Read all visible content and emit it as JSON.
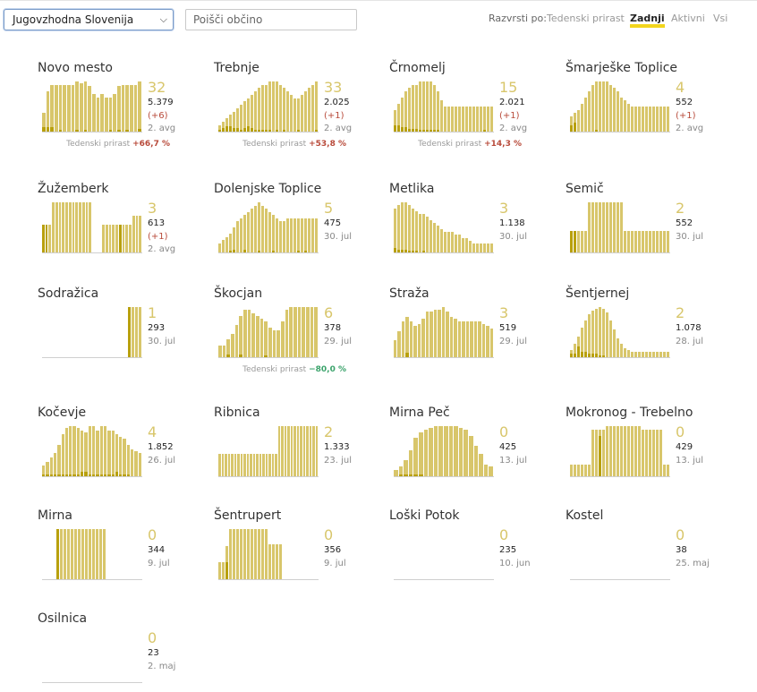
{
  "region_select": {
    "value": "Jugovzhodna Slovenija"
  },
  "search": {
    "placeholder": "Poišči občino"
  },
  "sort": {
    "label": "Razvrsti po:",
    "options": [
      "Tedenski prirast",
      "Zadnji",
      "Aktivni",
      "Vsi"
    ],
    "active": "Zadnji"
  },
  "weekly_label": "Tedenski prirast",
  "colors": {
    "bar": "#d8c66b",
    "bar_dark": "#b8a00d",
    "up": "#b84a3a",
    "down": "#3ba36b",
    "accent": "#f2d51c"
  },
  "municipalities": [
    {
      "name": "Novo mesto",
      "active": "32",
      "total": "5.379",
      "change": "(+6)",
      "date": "2. avg",
      "weekly": "+66,7 %",
      "trend": "up",
      "bars": [
        12,
        26,
        30,
        30,
        30,
        30,
        30,
        30,
        32,
        31,
        32,
        29,
        24,
        22,
        24,
        22,
        22,
        24,
        29,
        30,
        30,
        30,
        30,
        32
      ],
      "dark": [
        3,
        3,
        3,
        0,
        1,
        0,
        0,
        0,
        1,
        0,
        1,
        0,
        0,
        0,
        0,
        0,
        1,
        0,
        1,
        0,
        1,
        0,
        0,
        2
      ]
    },
    {
      "name": "Trebnje",
      "active": "33",
      "total": "2.025",
      "change": "(+1)",
      "date": "2. avg",
      "weekly": "+53,8 %",
      "trend": "up",
      "bars": [
        4,
        6,
        8,
        10,
        12,
        14,
        16,
        18,
        20,
        22,
        24,
        26,
        28,
        28,
        30,
        30,
        30,
        28,
        26,
        24,
        22,
        20,
        20,
        22,
        24,
        26,
        28,
        30
      ],
      "dark": [
        1,
        2,
        3,
        3,
        2,
        2,
        1,
        2,
        3,
        2,
        1,
        1,
        1,
        1,
        1,
        0,
        1,
        0,
        1,
        0,
        0,
        0,
        1,
        0,
        0,
        0,
        0,
        1
      ]
    },
    {
      "name": "Črnomelj",
      "active": "15",
      "total": "2.021",
      "change": "(+1)",
      "date": "2. avg",
      "weekly": "+14,3 %",
      "trend": "up",
      "bars": [
        14,
        18,
        22,
        26,
        28,
        30,
        30,
        32,
        32,
        32,
        32,
        30,
        26,
        20,
        16,
        16,
        16,
        16,
        16,
        16,
        16,
        16,
        16,
        16,
        16,
        16,
        16,
        16
      ],
      "dark": [
        4,
        4,
        3,
        3,
        2,
        2,
        2,
        1,
        1,
        1,
        1,
        1,
        1,
        0,
        0,
        0,
        0,
        0,
        0,
        0,
        0,
        0,
        0,
        0,
        0,
        1,
        0,
        0
      ]
    },
    {
      "name": "Šmarješke Toplice",
      "active": "4",
      "total": "552",
      "change": "(+1)",
      "date": "2. avg",
      "bars": [
        10,
        12,
        14,
        18,
        22,
        26,
        30,
        32,
        32,
        32,
        32,
        30,
        28,
        26,
        22,
        20,
        18,
        16,
        16,
        16,
        16,
        16,
        16,
        16,
        16,
        16,
        16,
        16
      ],
      "dark": [
        4,
        6,
        0,
        0,
        0,
        0,
        0,
        1,
        0,
        0,
        0,
        0,
        0,
        0,
        0,
        0,
        0,
        0,
        0,
        0,
        0,
        0,
        0,
        0,
        0,
        0,
        0,
        0
      ]
    },
    {
      "name": "Žužemberk",
      "active": "3",
      "total": "613",
      "change": "(+1)",
      "date": "2. avg",
      "bars": [
        12,
        12,
        12,
        22,
        22,
        22,
        22,
        22,
        22,
        22,
        22,
        22,
        22,
        22,
        22,
        0,
        0,
        0,
        12,
        12,
        12,
        12,
        12,
        12,
        12,
        12,
        12,
        16,
        16,
        16
      ],
      "dark": [
        12,
        12,
        0,
        0,
        0,
        0,
        0,
        0,
        0,
        0,
        0,
        0,
        0,
        0,
        0,
        0,
        0,
        0,
        0,
        0,
        0,
        0,
        0,
        12,
        0,
        0,
        0,
        0,
        0,
        0
      ]
    },
    {
      "name": "Dolenjske Toplice",
      "active": "5",
      "total": "475",
      "date": "30. jul",
      "bars": [
        6,
        8,
        10,
        12,
        16,
        20,
        22,
        24,
        26,
        28,
        30,
        32,
        30,
        28,
        26,
        24,
        22,
        20,
        20,
        22,
        22,
        22,
        22,
        22,
        22,
        22,
        22,
        22
      ],
      "dark": [
        0,
        0,
        0,
        1,
        2,
        0,
        0,
        2,
        0,
        0,
        0,
        1,
        0,
        0,
        0,
        1,
        0,
        0,
        0,
        0,
        0,
        0,
        1,
        0,
        1,
        0,
        0,
        0
      ]
    },
    {
      "name": "Metlika",
      "active": "3",
      "total": "1.138",
      "date": "30. jul",
      "bars": [
        30,
        32,
        34,
        34,
        32,
        30,
        28,
        26,
        26,
        24,
        22,
        20,
        18,
        16,
        14,
        14,
        14,
        12,
        12,
        10,
        10,
        8,
        6,
        6,
        6,
        6,
        6,
        6
      ],
      "dark": [
        3,
        2,
        2,
        2,
        1,
        1,
        1,
        0,
        1,
        0,
        0,
        0,
        0,
        0,
        0,
        0,
        0,
        0,
        0,
        0,
        0,
        0,
        0,
        0,
        0,
        0,
        0,
        0
      ]
    },
    {
      "name": "Semič",
      "active": "2",
      "total": "552",
      "date": "30. jul",
      "bars": [
        22,
        22,
        22,
        22,
        22,
        52,
        52,
        52,
        52,
        52,
        52,
        52,
        52,
        52,
        52,
        22,
        22,
        22,
        22,
        22,
        22,
        22,
        22,
        22,
        22,
        22,
        22,
        22
      ],
      "dark": [
        22,
        22,
        0,
        0,
        0,
        0,
        0,
        0,
        0,
        0,
        0,
        0,
        0,
        0,
        0,
        0,
        0,
        0,
        0,
        0,
        0,
        0,
        0,
        0,
        0,
        0,
        0,
        0
      ]
    },
    {
      "name": "Sodražica",
      "active": "1",
      "total": "293",
      "date": "30. jul",
      "bars": [
        0,
        0,
        0,
        0,
        0,
        0,
        0,
        0,
        0,
        0,
        0,
        0,
        0,
        0,
        0,
        0,
        0,
        0,
        0,
        0,
        0,
        0,
        0,
        0,
        52,
        52,
        52,
        52
      ],
      "dark": [
        0,
        0,
        0,
        0,
        0,
        0,
        0,
        0,
        0,
        0,
        0,
        0,
        0,
        0,
        0,
        0,
        0,
        0,
        0,
        0,
        0,
        0,
        0,
        0,
        52,
        0,
        0,
        0
      ]
    },
    {
      "name": "Škocjan",
      "active": "6",
      "total": "378",
      "date": "29. jul",
      "weekly": "−80,0 %",
      "trend": "down",
      "bars": [
        8,
        8,
        12,
        16,
        22,
        28,
        32,
        32,
        30,
        28,
        26,
        24,
        20,
        18,
        18,
        24,
        32,
        34,
        34,
        34,
        34,
        34,
        34,
        34
      ],
      "dark": [
        0,
        0,
        2,
        0,
        0,
        2,
        0,
        0,
        0,
        0,
        0,
        1,
        0,
        0,
        0,
        0,
        0,
        0,
        0,
        0,
        0,
        0,
        0,
        0
      ]
    },
    {
      "name": "Straža",
      "active": "3",
      "total": "519",
      "date": "29. jul",
      "bars": [
        14,
        22,
        30,
        34,
        30,
        26,
        28,
        32,
        38,
        38,
        40,
        40,
        42,
        38,
        34,
        32,
        30,
        30,
        30,
        30,
        30,
        30,
        28,
        26,
        24
      ],
      "dark": [
        0,
        0,
        0,
        4,
        0,
        0,
        0,
        0,
        0,
        0,
        0,
        0,
        0,
        0,
        0,
        0,
        0,
        0,
        0,
        0,
        0,
        0,
        0,
        0,
        0
      ]
    },
    {
      "name": "Šentjernej",
      "active": "2",
      "total": "1.078",
      "date": "28. jul",
      "bars": [
        8,
        14,
        22,
        32,
        40,
        46,
        50,
        52,
        54,
        52,
        48,
        40,
        30,
        20,
        14,
        10,
        8,
        6,
        6,
        6,
        6,
        6,
        6,
        6,
        6,
        6,
        6,
        6
      ],
      "dark": [
        4,
        4,
        12,
        6,
        6,
        4,
        4,
        4,
        2,
        2,
        0,
        0,
        0,
        0,
        0,
        0,
        0,
        0,
        0,
        0,
        0,
        0,
        0,
        0,
        0,
        0,
        0,
        0
      ]
    },
    {
      "name": "Kočevje",
      "active": "4",
      "total": "1.852",
      "date": "26. jul",
      "bars": [
        10,
        14,
        18,
        22,
        30,
        40,
        46,
        48,
        48,
        46,
        44,
        42,
        48,
        48,
        44,
        48,
        48,
        44,
        44,
        40,
        38,
        36,
        30,
        26,
        24,
        22
      ],
      "dark": [
        2,
        2,
        2,
        2,
        2,
        2,
        2,
        2,
        2,
        2,
        4,
        4,
        2,
        2,
        2,
        2,
        2,
        2,
        2,
        4,
        2,
        2,
        2,
        0,
        0,
        0
      ]
    },
    {
      "name": "Ribnica",
      "active": "2",
      "total": "1.333",
      "date": "23. jul",
      "bars": [
        24,
        24,
        24,
        24,
        24,
        24,
        24,
        24,
        24,
        24,
        24,
        24,
        24,
        24,
        24,
        24,
        24,
        24,
        24,
        54,
        54,
        54,
        54,
        54,
        54,
        54,
        54,
        54,
        54,
        54,
        54,
        54
      ],
      "dark": [
        0,
        0,
        0,
        0,
        0,
        0,
        0,
        0,
        0,
        0,
        0,
        0,
        0,
        0,
        0,
        0,
        0,
        0,
        0,
        0,
        0,
        0,
        0,
        0,
        0,
        0,
        0,
        0,
        0,
        0,
        0,
        0
      ]
    },
    {
      "name": "Mirna Peč",
      "active": "0",
      "total": "425",
      "date": "13. jul",
      "bars": [
        6,
        10,
        16,
        26,
        38,
        44,
        46,
        48,
        50,
        50,
        50,
        50,
        50,
        48,
        46,
        40,
        30,
        22,
        12,
        10
      ],
      "dark": [
        0,
        2,
        2,
        2,
        2,
        2,
        0,
        0,
        0,
        0,
        0,
        0,
        0,
        0,
        0,
        0,
        0,
        0,
        0,
        0
      ]
    },
    {
      "name": "Mokronog - Trebelno",
      "active": "0",
      "total": "429",
      "date": "13. jul",
      "bars": [
        12,
        12,
        12,
        12,
        12,
        12,
        48,
        48,
        48,
        48,
        52,
        52,
        52,
        52,
        52,
        52,
        52,
        52,
        52,
        52,
        48,
        48,
        48,
        48,
        48,
        48,
        12,
        12
      ],
      "dark": [
        0,
        0,
        0,
        0,
        0,
        0,
        0,
        0,
        42,
        0,
        0,
        0,
        0,
        0,
        0,
        0,
        0,
        0,
        0,
        0,
        0,
        0,
        0,
        0,
        0,
        0,
        0,
        0
      ]
    },
    {
      "name": "Mirna",
      "active": "0",
      "total": "344",
      "date": "9. jul",
      "bars": [
        0,
        0,
        0,
        0,
        52,
        52,
        52,
        52,
        52,
        52,
        52,
        52,
        52,
        52,
        52,
        52,
        52,
        52,
        0,
        0,
        0,
        0,
        0,
        0,
        0,
        0,
        0,
        0
      ],
      "dark": [
        0,
        0,
        0,
        0,
        52,
        0,
        0,
        0,
        0,
        0,
        0,
        0,
        0,
        0,
        0,
        0,
        0,
        0,
        0,
        0,
        0,
        0,
        0,
        0,
        0,
        0,
        0,
        0
      ]
    },
    {
      "name": "Šentrupert",
      "active": "0",
      "total": "356",
      "date": "9. jul",
      "bars": [
        18,
        18,
        34,
        52,
        52,
        52,
        52,
        52,
        52,
        52,
        52,
        52,
        52,
        52,
        36,
        36,
        36,
        36,
        0,
        0,
        0,
        0,
        0,
        0,
        0,
        0,
        0,
        0
      ],
      "dark": [
        0,
        0,
        18,
        0,
        0,
        0,
        0,
        0,
        0,
        0,
        0,
        0,
        0,
        0,
        0,
        0,
        0,
        0,
        0,
        0,
        0,
        0,
        0,
        0,
        0,
        0,
        0,
        0
      ]
    },
    {
      "name": "Loški Potok",
      "active": "0",
      "total": "235",
      "date": "10. jun",
      "bars": [],
      "dark": []
    },
    {
      "name": "Kostel",
      "active": "0",
      "total": "38",
      "date": "25. maj",
      "bars": [],
      "dark": []
    },
    {
      "name": "Osilnica",
      "active": "0",
      "total": "23",
      "date": "2. maj",
      "bars": [],
      "dark": []
    }
  ]
}
